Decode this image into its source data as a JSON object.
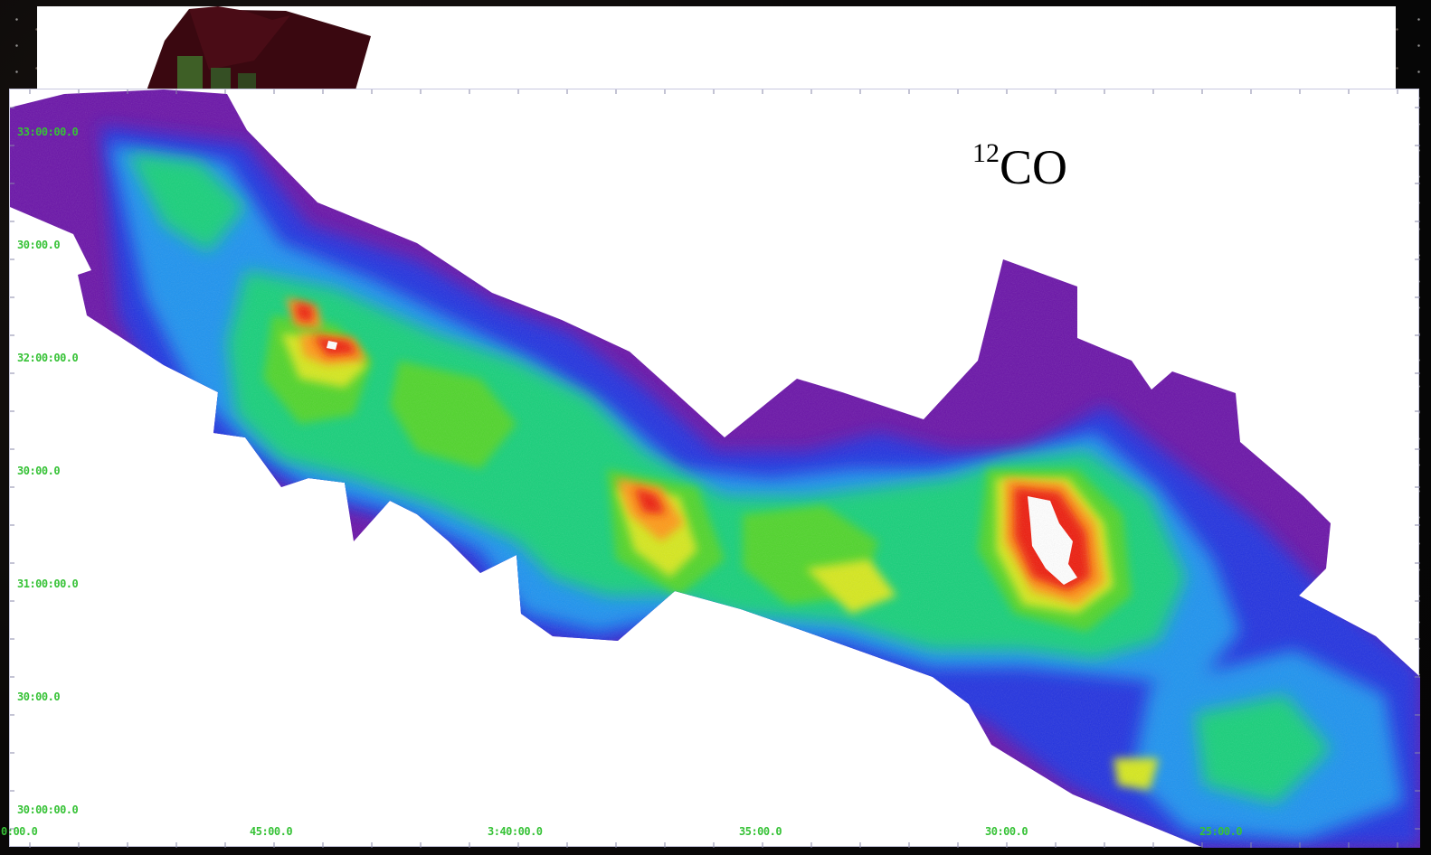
{
  "panel_label": {
    "isotope": "12",
    "molecule": "CO"
  },
  "y_axis_ticks": [
    "33:00:00.0",
    "30:00.0",
    "32:00:00.0",
    "30:00.0",
    "31:00:00.0",
    "30:00.0",
    "30:00:00.0"
  ],
  "x_axis_ticks": [
    "0:00.0",
    "45:00.0",
    "3:40:00.0",
    "35:00.0",
    "30:00.0",
    "25:00.0"
  ],
  "colors": {
    "axis_label": "#36c236",
    "colormap": [
      "#6a13a8",
      "#2130e0",
      "#1f93f0",
      "#18d07a",
      "#4fd52a",
      "#d6e81a",
      "#ff9a12",
      "#ee1b0d",
      "#ffffff"
    ]
  }
}
